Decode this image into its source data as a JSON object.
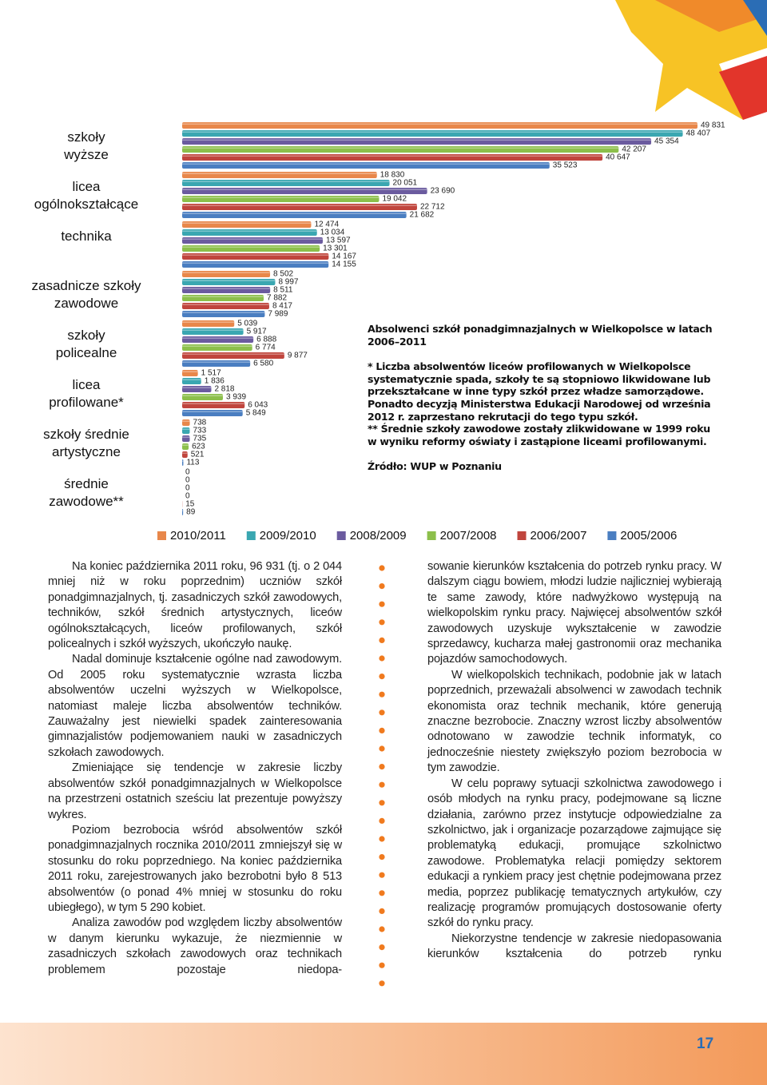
{
  "chart_data": {
    "type": "bar",
    "orientation": "horizontal",
    "categories": [
      "szkoły\nwyższe",
      "licea\nogólnokształcące",
      "technika",
      "zasadnicze szkoły\nzawodowe",
      "szkoły\npolicealne",
      "licea\nprofilowane*",
      "szkoły średnie\nartystyczne",
      "średnie\nzawodowe**"
    ],
    "series": [
      {
        "name": "2010/2011",
        "color": "#e8874a",
        "values": [
          49831,
          18830,
          12474,
          8502,
          5039,
          1517,
          738,
          0
        ],
        "value_labels": [
          "49 831",
          "18 830",
          "12 474",
          "8 502",
          "5 039",
          "1 517",
          "738",
          "0"
        ]
      },
      {
        "name": "2009/2010",
        "color": "#3aa7b1",
        "values": [
          48407,
          20051,
          13034,
          8997,
          5917,
          1836,
          733,
          0
        ],
        "value_labels": [
          "48 407",
          "20 051",
          "13 034",
          "8 997",
          "5 917",
          "1 836",
          "733",
          "0"
        ]
      },
      {
        "name": "2008/2009",
        "color": "#6b5b9f",
        "values": [
          45354,
          23690,
          13597,
          8511,
          6888,
          2818,
          735,
          0
        ],
        "value_labels": [
          "45 354",
          "23 690",
          "13 597",
          "8 511",
          "6 888",
          "2 818",
          "735",
          "0"
        ]
      },
      {
        "name": "2007/2008",
        "color": "#8cbf4b",
        "values": [
          42207,
          19042,
          13301,
          7882,
          6774,
          3939,
          623,
          0
        ],
        "value_labels": [
          "42 207",
          "19 042",
          "13 301",
          "7 882",
          "6 774",
          "3 939",
          "623",
          "0"
        ]
      },
      {
        "name": "2006/2007",
        "color": "#c0453d",
        "values": [
          40647,
          22712,
          14167,
          8417,
          9877,
          6043,
          521,
          15
        ],
        "value_labels": [
          "40 647",
          "22 712",
          "14 167",
          "8 417",
          "9 877",
          "6 043",
          "521",
          "15"
        ]
      },
      {
        "name": "2005/2006",
        "color": "#4a7ec1",
        "values": [
          35523,
          21682,
          14155,
          7989,
          6580,
          5849,
          113,
          89
        ],
        "value_labels": [
          "35 523",
          "21 682",
          "14 155",
          "7 989",
          "6 580",
          "5 849",
          "113",
          "89"
        ]
      }
    ]
  },
  "notes": {
    "title": "Absolwenci szkół ponadgimnazjalnych w Wielkopolsce w latach 2006–2011",
    "items": [
      "* Liczba absolwentów liceów profilowanych w Wielkopolsce systematycznie spada, szkoły te są stopniowo likwidowane lub przekształcane w inne typy szkół przez władze samorządowe. Ponadto decyzją Ministerstwa Edukacji Narodowej od września 2012 r. zaprzestano rekrutacji do tego typu szkół.",
      "** Średnie szkoły zawodowe zostały zlikwidowane w 1999 roku w wyniku reformy oświaty i zastąpione liceami profilowanymi."
    ],
    "source": "Źródło: WUP w Poznaniu"
  },
  "body": {
    "left": [
      "Na koniec października 2011 roku, 96 931 (tj. o 2 044 mniej niż w roku poprzednim) uczniów szkół ponadgimnazjalnych, tj. zasadniczych szkół zawodowych, techników, szkół średnich artystycznych, liceów ogólnokształcących, liceów profilowanych, szkół policealnych i szkół wyższych, ukończyło naukę.",
      "Nadal dominuje kształcenie ogólne nad zawodowym. Od 2005 roku systematycznie wzrasta liczba absolwentów uczelni wyższych w Wielkopolsce, natomiast maleje liczba absolwentów techników. Zauważalny jest niewielki spadek zainteresowania gimnazjalistów podjemowaniem nauki w zasadniczych szkołach zawodowych.",
      "Zmieniające się tendencje w zakresie liczby absolwentów szkół ponadgimnazjalnych w Wielkopolsce na przestrzeni ostatnich sześciu lat prezentuje powyższy wykres.",
      "Poziom bezrobocia wśród absolwentów szkół ponadgimnazjalnych rocznika 2010/2011 zmniejszył się w stosunku do roku poprzedniego. Na koniec października 2011 roku, zarejestrowanych jako bezrobotni było 8 513 absolwentów (o ponad 4% mniej w stosunku do roku ubiegłego), w tym 5 290 kobiet.",
      "Analiza zawodów pod względem liczby absolwentów w danym kierunku wykazuje, że niezmiennie w zasadniczych szkołach zawodowych oraz technikach problemem pozostaje niedopa-"
    ],
    "right": [
      "sowanie kierunków kształcenia do potrzeb rynku pracy. W dalszym ciągu bowiem, młodzi ludzie najliczniej wybierają te same zawody, które nadwyżkowo występują na wielkopolskim rynku pracy. Najwięcej absolwentów szkół zawodowych uzyskuje wykształcenie w zawodzie sprzedawcy, kucharza małej gastronomii oraz mechanika pojazdów samochodowych.",
      "W wielkopolskich technikach, podobnie jak w latach poprzednich, przeważali absolwenci w zawodach technik ekonomista oraz technik mechanik, które generują znaczne bezrobocie. Znaczny wzrost liczby absolwentów odnotowano w zawodzie technik informatyk, co jednocześnie niestety zwiększyło poziom bezrobocia w tym zawodzie.",
      "W celu poprawy sytuacji szkolnictwa zawodowego i osób młodych na rynku pracy, podejmowane są liczne działania, zarówno przez instytucje odpowiedzialne za szkolnictwo, jak i organizacje pozarządowe zajmujące się problematyką edukacji, promujące szkolnictwo zawodowe. Problematyka relacji pomiędzy sektorem edukacji a rynkiem pracy jest chętnie podejmowana przez media, poprzez publikację tematycznych artykułów, czy realizację programów promujących dostosowanie oferty szkół do rynku pracy.",
      "Niekorzystne tendencje w zakresie niedopasowania kierunków kształcenia do potrzeb rynku"
    ]
  },
  "page_number": "17"
}
